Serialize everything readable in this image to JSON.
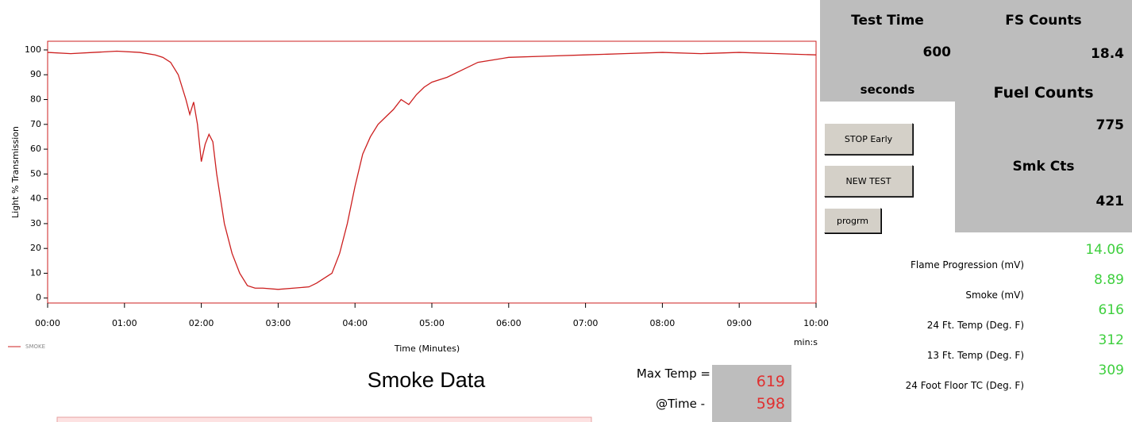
{
  "chart_data": {
    "type": "line",
    "title": "Smoke Data",
    "x_label": "Time (Minutes)",
    "x_unit": "min:s",
    "y_label": "Light % Transmission",
    "x": [
      0,
      0.3,
      0.6,
      0.9,
      1.2,
      1.4,
      1.5,
      1.6,
      1.7,
      1.8,
      1.85,
      1.9,
      1.95,
      2.0,
      2.05,
      2.1,
      2.15,
      2.2,
      2.3,
      2.4,
      2.5,
      2.6,
      2.7,
      2.8,
      3.0,
      3.2,
      3.4,
      3.5,
      3.6,
      3.7,
      3.8,
      3.9,
      4.0,
      4.1,
      4.2,
      4.3,
      4.4,
      4.5,
      4.6,
      4.7,
      4.8,
      4.9,
      5.0,
      5.2,
      5.4,
      5.6,
      5.8,
      6.0,
      6.5,
      7.0,
      7.5,
      8.0,
      8.5,
      9.0,
      9.5,
      10.0
    ],
    "series": [
      {
        "name": "SMOKE",
        "color": "#cc1f1f",
        "values": [
          99,
          98.5,
          99,
          99.5,
          99,
          98,
          97,
          95,
          90,
          80,
          74,
          79,
          70,
          55,
          62,
          66,
          63,
          50,
          30,
          18,
          10,
          5,
          4,
          4,
          3.5,
          4,
          4.5,
          6,
          8,
          10,
          18,
          30,
          45,
          58,
          65,
          70,
          73,
          76,
          80,
          78,
          82,
          85,
          87,
          89,
          92,
          95,
          96,
          97,
          97.5,
          98,
          98.5,
          99,
          98.5,
          99,
          98.5,
          98
        ]
      }
    ],
    "xlim": [
      0,
      10
    ],
    "ylim": [
      -2,
      103.5
    ],
    "xticks": [
      {
        "value": 0,
        "label": "00:00"
      },
      {
        "value": 1,
        "label": "01:00"
      },
      {
        "value": 2,
        "label": "02:00"
      },
      {
        "value": 3,
        "label": "03:00"
      },
      {
        "value": 4,
        "label": "04:00"
      },
      {
        "value": 5,
        "label": "05:00"
      },
      {
        "value": 6,
        "label": "06:00"
      },
      {
        "value": 7,
        "label": "07:00"
      },
      {
        "value": 8,
        "label": "08:00"
      },
      {
        "value": 9,
        "label": "09:00"
      },
      {
        "value": 10,
        "label": "10:00"
      }
    ],
    "yticks": [
      0,
      10,
      20,
      30,
      40,
      50,
      60,
      70,
      80,
      90,
      100
    ],
    "grid": false,
    "legend": "bottom-left"
  },
  "max_temp": {
    "label": "Max Temp =",
    "value": "619",
    "time_label": "@Time -",
    "time_value": "598"
  },
  "test_time": {
    "title": "Test Time",
    "value": "600",
    "unit": "seconds"
  },
  "counts": {
    "fs_title": "FS Counts",
    "fs_value": "18.4",
    "fuel_title": "Fuel Counts",
    "fuel_value": "775",
    "smk_title": "Smk Cts",
    "smk_value": "421"
  },
  "buttons": [
    "STOP Early",
    "NEW TEST",
    "progrm"
  ],
  "readings": [
    {
      "label": "Flame Progression (mV)",
      "value": "14.06"
    },
    {
      "label": "Smoke (mV)",
      "value": "8.89"
    },
    {
      "label": "24 Ft. Temp (Deg. F)",
      "value": "616"
    },
    {
      "label": "13 Ft. Temp (Deg. F)",
      "value": "312"
    },
    {
      "label": "24 Foot Floor TC (Deg. F)",
      "value": "309"
    }
  ]
}
